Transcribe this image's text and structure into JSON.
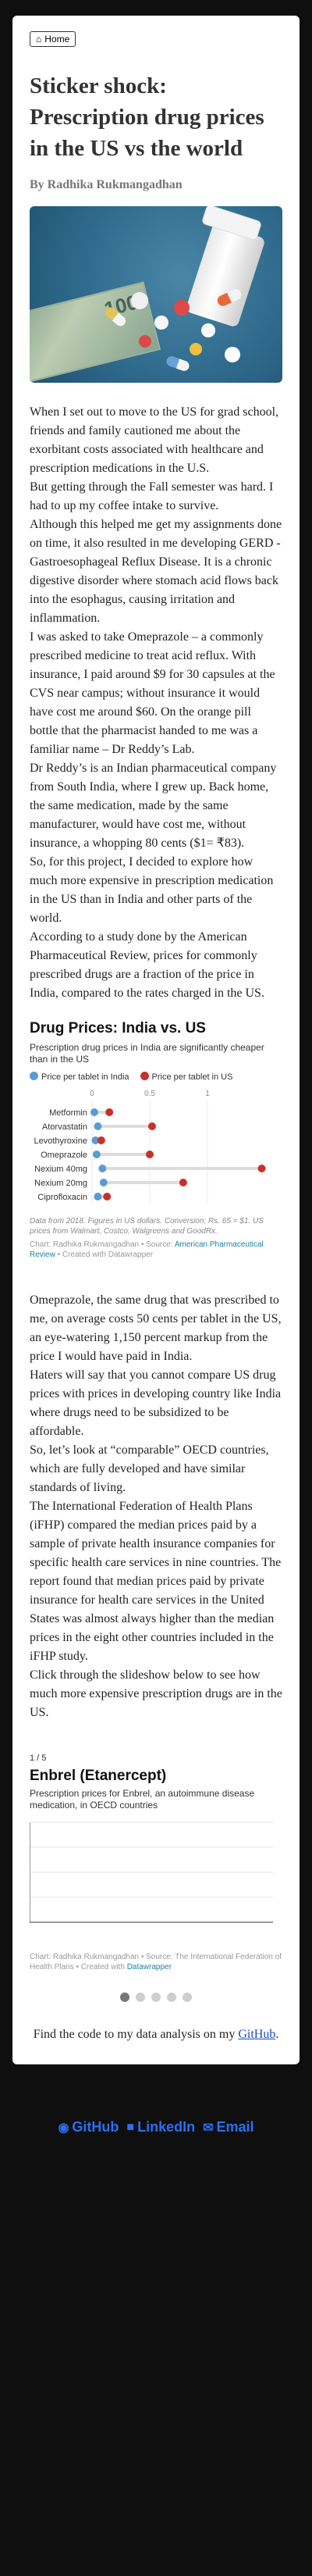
{
  "nav": {
    "home_label": "Home",
    "home_icon": "home-icon"
  },
  "article": {
    "title": "Sticker shock: Prescription drug prices in the US vs the world",
    "byline": "By Radhika Rukmangadhan",
    "paragraphs_part1": [
      "When I set out to move to the US for grad school, friends and family cautioned me about the exorbitant costs associated with healthcare and prescription medications in the U.S.",
      "But getting through the Fall semester was hard. I had to up my coffee intake to survive.",
      "Although this helped me get my assignments done on time, it also resulted in me developing GERD - Gastroesophageal Reflux Disease. It is a chronic digestive disorder where stomach acid flows back into the esophagus, causing irritation and inflammation.",
      "I was asked to take Omeprazole – a commonly prescribed medicine to treat acid reflux. With insurance, I paid around $9 for 30 capsules at the CVS near campus; without insurance it would have cost me around $60. On the orange pill bottle that the pharmacist handed to me was a familiar name – Dr Reddy’s Lab.",
      "Dr Reddy’s is an Indian pharmaceutical company from South India, where I grew up. Back home, the same medication, made by the same manufacturer, would have cost me, without insurance, a whopping 80 cents ($1= ₹83).",
      "So, for this project, I decided to explore how much more expensive in prescription medication in the US than in India and other parts of the world.",
      "According to a study done by the American Pharmaceutical Review, prices for commonly prescribed drugs are a fraction of the price in India, compared to the rates charged in the US."
    ],
    "paragraphs_part2": [
      "Omeprazole, the same drug that was prescribed to me, on average costs 50 cents per tablet in the US, an eye-watering 1,150 percent markup from the price I would have paid in India.",
      "Haters will say that you cannot compare US drug prices with prices in developing country like India where drugs need to be subsidized to be affordable.",
      "So, let’s look at “comparable” OECD countries, which are fully developed and have similar standards of living.",
      "The International Federation of Health Plans (iFHP) compared the median prices paid by a sample of private health insurance companies for specific health care services in nine countries. The report found that median prices paid by private insurance for health care services in the United States was almost always higher than the median prices in the eight other countries included in the iFHP study.",
      "Click through the slideshow below to see how much more expensive prescription drugs are in the US."
    ],
    "code_note_prefix": "Find the code to my data analysis on my",
    "code_note_link": "GitHub",
    "code_note_suffix": "."
  },
  "chart1": {
    "title": "Drug Prices: India vs. US",
    "description": "Prescription drug prices in India are significantly cheaper than in the US",
    "legend_india": "Price per tablet in India",
    "legend_us": "Price per tablet in US",
    "notes": "Data from 2018. Figures in US dollars. Conversion: Rs. 65 = $1. US prices from Walmart, Costco, Walgreens and GoodRx.",
    "credit_prefix": "Chart: Radhika Rukmangadhan • Source:",
    "credit_source": "American Pharmaceutical Review",
    "credit_suffix": "• Created with Datawrapper",
    "colors": {
      "india": "#5a9bd4",
      "us": "#c9302c",
      "track": "#dcdcdc"
    }
  },
  "chart2": {
    "counter": "1 / 5",
    "title": "Enbrel (Etanercept)",
    "description": "Prescription prices for Enbrel, an autoimmune disease medication, in OECD countries",
    "credit_prefix": "Chart: Radhika Rukmangadhan • Source:",
    "credit_source": "The International Federation of Health Plans",
    "credit_mid": "• Created with",
    "credit_tool": "Datawrapper",
    "slides": 5,
    "active_slide": 1
  },
  "footer": {
    "github": "GitHub",
    "linkedin": "LinkedIn",
    "email": "Email"
  },
  "chart_data": {
    "type": "dot-range",
    "title": "Drug Prices: India vs. US",
    "subtitle": "Prescription drug prices in India are significantly cheaper than in the US",
    "categories": [
      "Metformin",
      "Atorvastatin",
      "Levothyroxine",
      "Omeprazole",
      "Nexium 40mg",
      "Nexium 20mg",
      "Ciprofloxacin"
    ],
    "x_ticks": [
      "0",
      "0.5",
      "1"
    ],
    "xlim": [
      0,
      1.5
    ],
    "series": [
      {
        "name": "Price per tablet in India",
        "values": [
          0.02,
          0.05,
          0.03,
          0.04,
          0.09,
          0.1,
          0.05
        ]
      },
      {
        "name": "Price per tablet in US",
        "values": [
          0.15,
          0.52,
          0.08,
          0.5,
          1.47,
          0.79,
          0.13
        ]
      }
    ],
    "grid": true,
    "legend": "top-left"
  }
}
